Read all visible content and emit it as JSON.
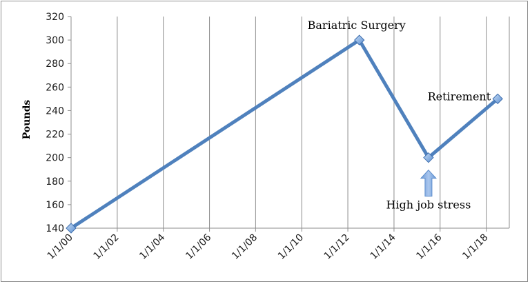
{
  "chart_data": {
    "type": "line",
    "title": "",
    "xlabel": "",
    "ylabel": "Pounds",
    "x_ticks": [
      "1/1/00",
      "1/1/02",
      "1/1/04",
      "1/1/06",
      "1/1/08",
      "1/1/10",
      "1/1/12",
      "1/1/14",
      "1/1/16",
      "1/1/18"
    ],
    "ylim": [
      140,
      320
    ],
    "y_ticks": [
      140,
      160,
      180,
      200,
      220,
      240,
      260,
      280,
      300,
      320
    ],
    "grid": "vertical",
    "series": [
      {
        "points": [
          {
            "x": "2000-01-01",
            "y": 140
          },
          {
            "x": "2012-07-01",
            "y": 300
          },
          {
            "x": "2015-07-01",
            "y": 200
          },
          {
            "x": "2018-07-01",
            "y": 250
          }
        ],
        "color": "#4f81bd"
      }
    ],
    "annotations": [
      {
        "text": "Bariatric Surgery",
        "x": "2012-07-01",
        "y": 300
      },
      {
        "text": "Retirement",
        "x": "2018-07-01",
        "y": 250
      },
      {
        "text": "High job stress",
        "x": "2015-07-01",
        "y": 200,
        "arrow": "up"
      }
    ]
  }
}
